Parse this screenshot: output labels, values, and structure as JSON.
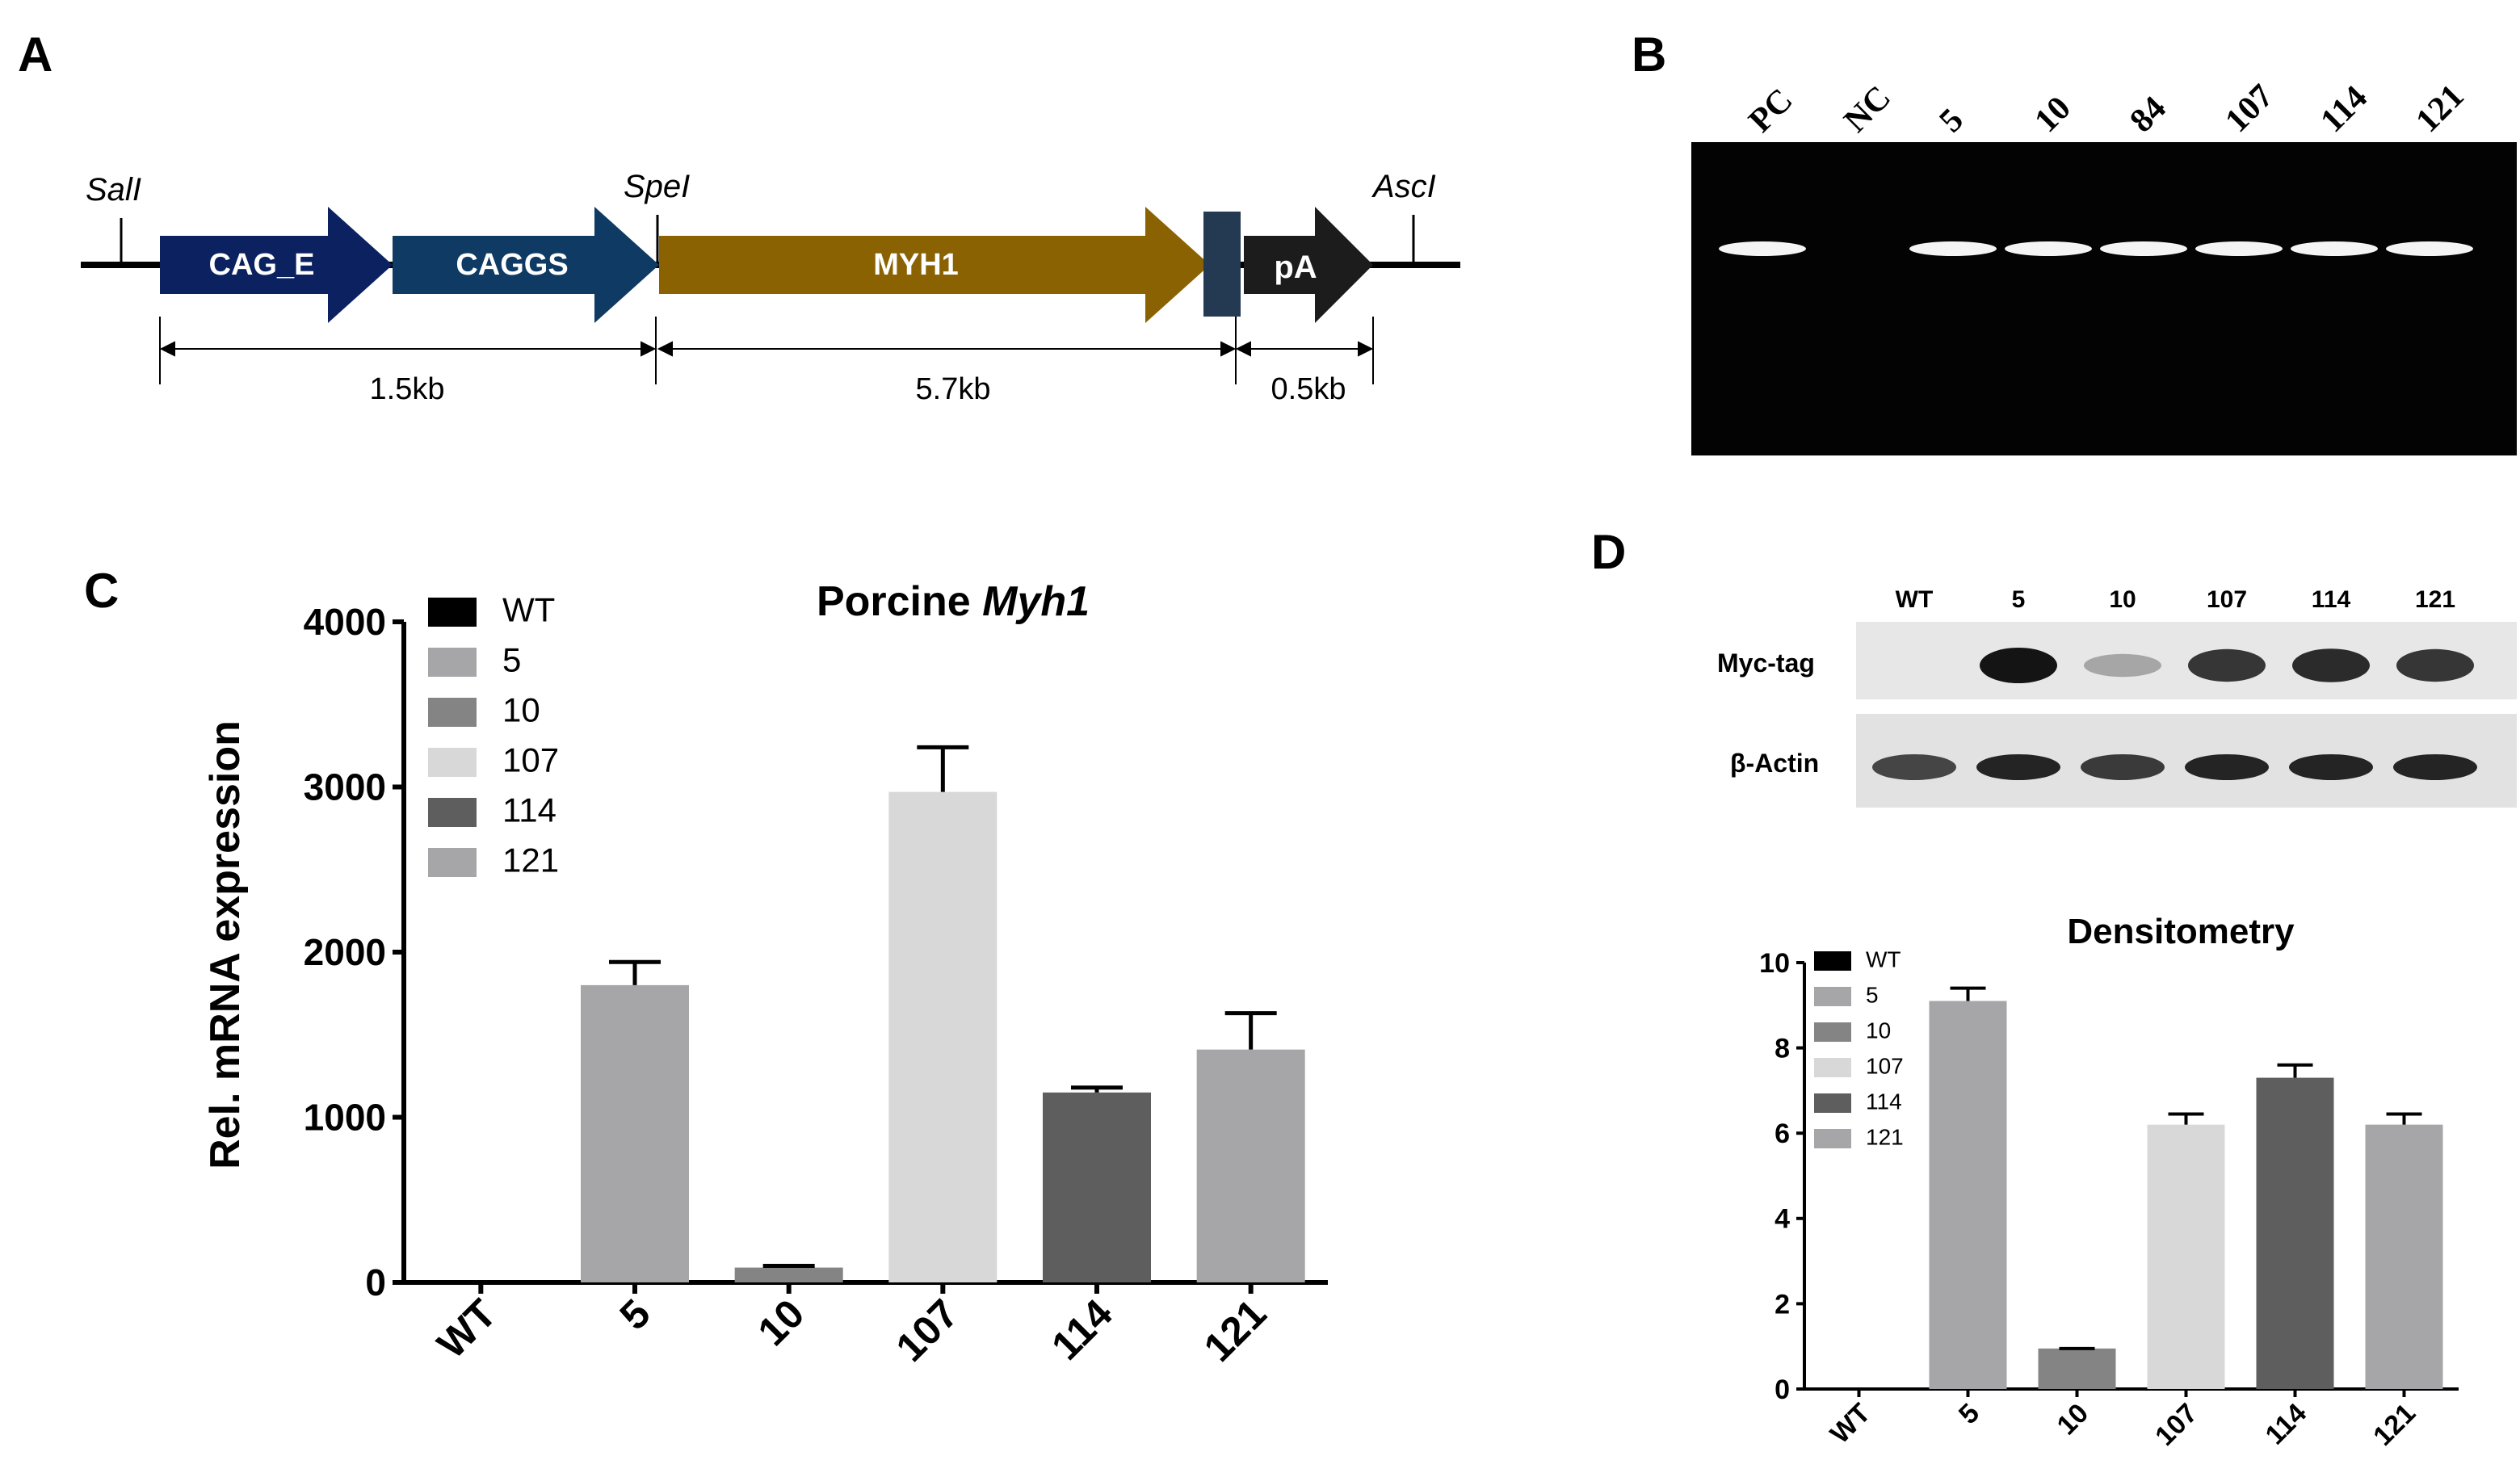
{
  "panels": {
    "A": {
      "letter": "A",
      "sites": [
        "SalI",
        "SpeI",
        "AscI"
      ],
      "segments": [
        "CAG_E",
        "CAGGS",
        "MYH1",
        "pA"
      ],
      "sizes": [
        "1.5kb",
        "5.7kb",
        "0.5kb"
      ]
    },
    "B": {
      "letter": "B",
      "lanes": [
        "PC",
        "NC",
        "5",
        "10",
        "84",
        "107",
        "114",
        "121"
      ],
      "bands_present": [
        true,
        false,
        true,
        true,
        true,
        true,
        true,
        true
      ]
    },
    "C": {
      "letter": "C"
    },
    "D": {
      "letter": "D",
      "wb_lanes": [
        "WT",
        "5",
        "10",
        "107",
        "114",
        "121"
      ],
      "wb_rows": [
        "Myc-tag",
        "β-Actin"
      ],
      "myc_intensity": [
        0.0,
        1.0,
        0.35,
        0.85,
        0.9,
        0.85
      ],
      "actin_intensity": [
        0.8,
        0.95,
        0.85,
        0.95,
        0.95,
        0.95
      ]
    }
  },
  "chart_data": [
    {
      "type": "bar",
      "title": "Porcine Myh1",
      "title_plain": "Porcine",
      "title_italic": "Myh1",
      "ylabel": "Rel. mRNA expression",
      "xlabel": "",
      "categories": [
        "WT",
        "5",
        "10",
        "107",
        "114",
        "121"
      ],
      "values": [
        0,
        1800,
        90,
        2970,
        1150,
        1410
      ],
      "errors": [
        0,
        140,
        10,
        270,
        30,
        220
      ],
      "colors": [
        "#000000",
        "#a6a6a8",
        "#848484",
        "#d8d8d8",
        "#5e5e5e",
        "#a6a6a8"
      ],
      "ylim": [
        0,
        4000
      ],
      "yticks": [
        "0",
        "1000",
        "2000",
        "3000",
        "4000"
      ],
      "legend": [
        "WT",
        "5",
        "10",
        "107",
        "114",
        "121"
      ],
      "legend_position": "top-left"
    },
    {
      "type": "bar",
      "title": "Densitometry",
      "ylabel": "",
      "xlabel": "",
      "categories": [
        "WT",
        "5",
        "10",
        "107",
        "114",
        "121"
      ],
      "values": [
        0,
        9.1,
        0.95,
        6.2,
        7.3,
        6.2
      ],
      "errors": [
        0,
        0.3,
        0,
        0.25,
        0.3,
        0.25
      ],
      "colors": [
        "#000000",
        "#a6a6a8",
        "#848484",
        "#d8d8d8",
        "#5e5e5e",
        "#a6a6a8"
      ],
      "ylim": [
        0,
        10
      ],
      "yticks": [
        "0",
        "2",
        "4",
        "6",
        "8",
        "10"
      ],
      "legend": [
        "WT",
        "5",
        "10",
        "107",
        "114",
        "121"
      ],
      "legend_position": "top-left"
    }
  ]
}
